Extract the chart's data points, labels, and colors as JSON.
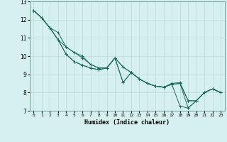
{
  "xlabel": "Humidex (Indice chaleur)",
  "bg_color": "#d6f0ef",
  "grid_color": "#b8d8d4",
  "line_color": "#1a6b5e",
  "xlim": [
    -0.5,
    23.5
  ],
  "ylim": [
    7,
    13
  ],
  "yticks": [
    7,
    8,
    9,
    10,
    11,
    12,
    13
  ],
  "xticks": [
    0,
    1,
    2,
    3,
    4,
    5,
    6,
    7,
    8,
    9,
    10,
    11,
    12,
    13,
    14,
    15,
    16,
    17,
    18,
    19,
    20,
    21,
    22,
    23
  ],
  "series": [
    [
      12.5,
      12.1,
      11.55,
      10.9,
      10.1,
      9.7,
      9.5,
      9.35,
      9.25,
      9.35,
      9.9,
      8.55,
      9.1,
      8.75,
      8.5,
      8.35,
      8.3,
      8.45,
      8.5,
      7.15,
      7.55,
      8.0,
      8.2,
      8.0
    ],
    [
      12.5,
      12.1,
      11.55,
      10.9,
      10.5,
      10.2,
      9.9,
      9.55,
      9.35,
      9.35,
      9.9,
      9.4,
      9.1,
      8.75,
      8.5,
      8.35,
      8.3,
      8.45,
      7.25,
      7.15,
      7.55,
      8.0,
      8.2,
      8.0
    ],
    [
      12.5,
      12.1,
      11.55,
      10.9,
      10.1,
      9.7,
      9.5,
      9.35,
      9.25,
      9.35,
      9.9,
      8.55,
      9.1,
      8.75,
      8.5,
      8.35,
      8.3,
      8.5,
      8.55,
      7.55,
      7.55,
      8.0,
      8.2,
      8.0
    ],
    [
      12.5,
      12.1,
      11.55,
      11.3,
      10.5,
      10.2,
      10.0,
      9.55,
      9.35,
      9.35,
      9.9,
      9.4,
      9.1,
      8.75,
      8.5,
      8.35,
      8.3,
      8.45,
      8.5,
      7.55,
      7.55,
      8.0,
      8.2,
      8.0
    ]
  ]
}
